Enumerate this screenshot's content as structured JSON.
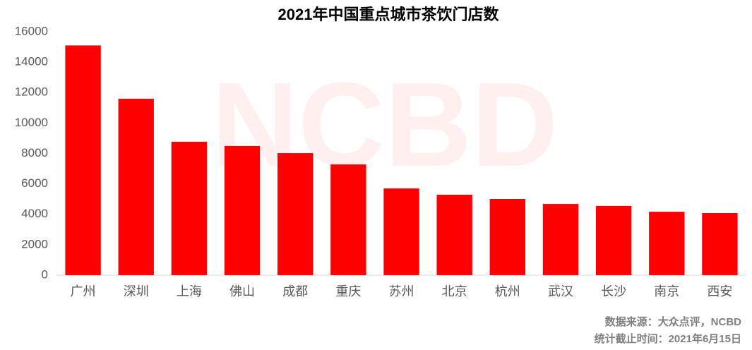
{
  "chart_data": {
    "type": "bar",
    "title": "2021年中国重点城市茶饮门店数",
    "watermark": "NCBD",
    "source": "数据来源：大众点评，NCBD",
    "note": "统计截止时间：2021年6月15日",
    "categories": [
      "广州",
      "深圳",
      "上海",
      "佛山",
      "成都",
      "重庆",
      "苏州",
      "北京",
      "杭州",
      "武汉",
      "长沙",
      "南京",
      "西安"
    ],
    "values": [
      15100,
      11600,
      8770,
      8490,
      8020,
      7280,
      5700,
      5290,
      5010,
      4680,
      4550,
      4170,
      4080
    ],
    "color": "#ff0000",
    "ylim": [
      0,
      16000
    ],
    "yticks": [
      0,
      2000,
      4000,
      6000,
      8000,
      10000,
      12000,
      14000,
      16000
    ],
    "grid": false
  }
}
